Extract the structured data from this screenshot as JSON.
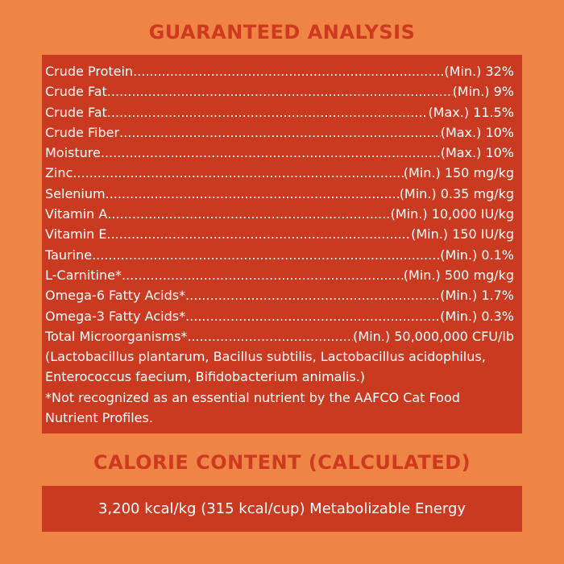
{
  "header": {
    "title": "GUARANTEED ANALYSIS"
  },
  "analysis": {
    "rows": [
      {
        "name": "Crude Protein",
        "value": "(Min.) 32%"
      },
      {
        "name": "Crude Fat",
        "value": "(Min.) 9%"
      },
      {
        "name": "Crude Fat",
        "value": "(Max.) 11.5%"
      },
      {
        "name": "Crude Fiber",
        "value": "(Max.) 10%"
      },
      {
        "name": "Moisture",
        "value": "(Max.) 10%"
      },
      {
        "name": "Zinc",
        "value": "(Min.) 150 mg/kg"
      },
      {
        "name": "Selenium",
        "value": "(Min.) 0.35 mg/kg"
      },
      {
        "name": "Vitamin A",
        "value": "(Min.) 10,000 IU/kg"
      },
      {
        "name": "Vitamin E",
        "value": "(Min.) 150 IU/kg"
      },
      {
        "name": "Taurine",
        "value": "(Min.) 0.1%"
      },
      {
        "name": "L-Carnitine*",
        "value": "(Min.) 500 mg/kg"
      },
      {
        "name": "Omega-6 Fatty Acids*",
        "value": "(Min.) 1.7%"
      },
      {
        "name": "Omega-3 Fatty Acids*",
        "value": "(Min.) 0.3%"
      },
      {
        "name": "Total Microorganisms*",
        "value": "(Min.) 50,000,000 CFU/lb"
      }
    ],
    "microorganisms": "(Lactobacillus plantarum, Bacillus subtilis, Lactobacillus acidophilus, Enterococcus faecium, Bifidobacterium animalis.)",
    "footnote": "*Not recognized as an essential nutrient by the AAFCO Cat Food Nutrient Profiles."
  },
  "calorie": {
    "title": "CALORIE CONTENT (CALCULATED)",
    "text": "3,200 kcal/kg (315 kcal/cup) Metabolizable Energy"
  }
}
